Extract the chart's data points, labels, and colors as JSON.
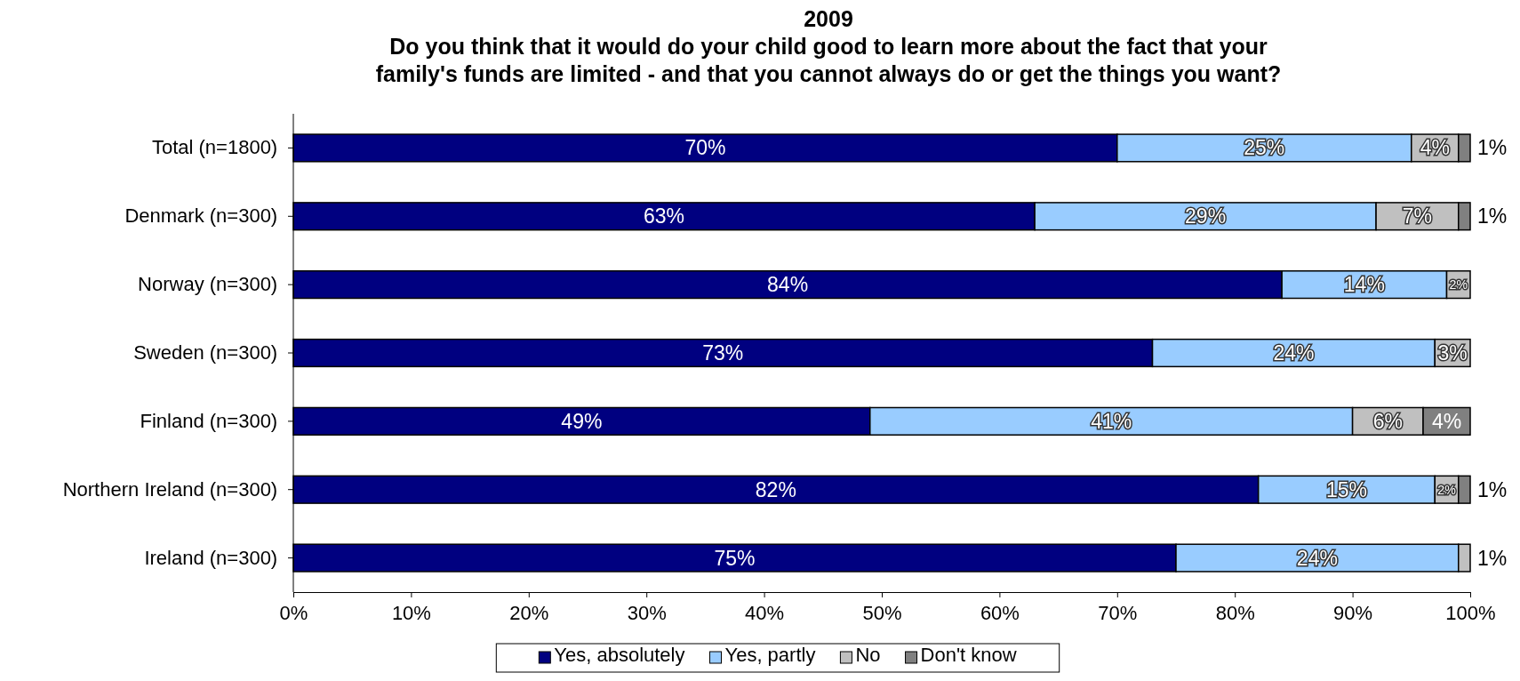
{
  "chart_data": {
    "type": "bar",
    "orientation": "horizontal",
    "stacked": true,
    "title": "2009\nDo you think that it would do your child good to learn more about the fact that your\nfamily's funds are limited - and that you cannot always do or get the things you want?",
    "categories": [
      "Total (n=1800)",
      "Denmark (n=300)",
      "Norway (n=300)",
      "Sweden (n=300)",
      "Finland (n=300)",
      "Northern Ireland (n=300)",
      "Ireland (n=300)"
    ],
    "series": [
      {
        "name": "Yes, absolutely",
        "color": "#000080",
        "values": [
          70,
          63,
          84,
          73,
          49,
          82,
          75
        ],
        "value_labels": [
          "70%",
          "63%",
          "84%",
          "73%",
          "49%",
          "82%",
          "75%"
        ]
      },
      {
        "name": "Yes, partly",
        "color": "#99ccff",
        "values": [
          25,
          29,
          14,
          24,
          41,
          15,
          24
        ],
        "value_labels": [
          "25%",
          "29%",
          "14%",
          "24%",
          "41%",
          "15%",
          "24%"
        ]
      },
      {
        "name": "No",
        "color": "#c0c0c0",
        "values": [
          4,
          7,
          2,
          3,
          6,
          2,
          1
        ],
        "value_labels": [
          "4%",
          "7%",
          "2%",
          "3%",
          "6%",
          "2%",
          "1%"
        ]
      },
      {
        "name": "Don't know",
        "color": "#808080",
        "values": [
          1,
          1,
          null,
          null,
          4,
          1,
          null
        ],
        "value_labels": [
          "1%",
          "1%",
          null,
          null,
          "4%",
          "1%",
          null
        ]
      }
    ],
    "xlim": [
      0,
      100
    ],
    "xticks": [
      {
        "value": 0,
        "label": "0%"
      },
      {
        "value": 10,
        "label": "10%"
      },
      {
        "value": 20,
        "label": "20%"
      },
      {
        "value": 30,
        "label": "30%"
      },
      {
        "value": 40,
        "label": "40%"
      },
      {
        "value": 50,
        "label": "50%"
      },
      {
        "value": 60,
        "label": "60%"
      },
      {
        "value": 70,
        "label": "70%"
      },
      {
        "value": 80,
        "label": "80%"
      },
      {
        "value": 90,
        "label": "90%"
      },
      {
        "value": 100,
        "label": "100%"
      }
    ],
    "legend": "bottom"
  }
}
